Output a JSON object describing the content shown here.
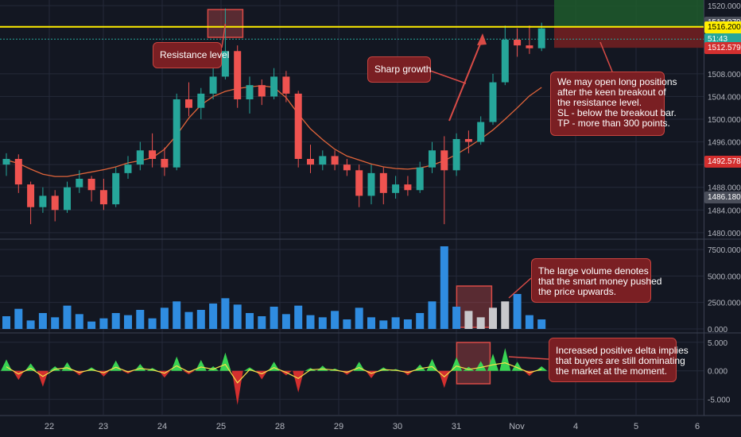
{
  "colors": {
    "background": "#131722",
    "grid": "#242a3a",
    "up": "#26a69a",
    "down": "#ef5350",
    "ma": "#e0643a",
    "resistance": "#ffee00",
    "volume": "#2f8ce0",
    "delta_up": "#39d353",
    "delta_down": "#d32f2f",
    "callout_bg": "#7a1f23",
    "callout_border": "#c8443f"
  },
  "chart_data": [
    {
      "type": "candlestick",
      "panel": "price",
      "x_ticks": [
        "22",
        "23",
        "24",
        "25",
        "28",
        "29",
        "30",
        "31",
        "Nov",
        "4",
        "5",
        "6"
      ],
      "y_ticks": [
        "1480.000",
        "1484.000",
        "1488.000",
        "1492.000",
        "1496.000",
        "1500.000",
        "1504.000",
        "1508.000",
        "1520.000"
      ],
      "ylim": [
        1479,
        1521
      ],
      "grid": true,
      "resistance_level": 1516.2,
      "price_tags": [
        {
          "label": "1517.079",
          "value": 1517.079,
          "bg": "#4a4e5a",
          "fg": "#ffffff"
        },
        {
          "label": "1516.200",
          "value": 1516.2,
          "bg": "#ffee00",
          "fg": "#000000"
        },
        {
          "label": "51:43",
          "value": 1514.1,
          "bg": "#26a69a",
          "fg": "#ffffff"
        },
        {
          "label": "1512.579",
          "value": 1512.579,
          "bg": "#d32f2f",
          "fg": "#ffffff"
        },
        {
          "label": "1492.578",
          "value": 1492.578,
          "bg": "#d32f2f",
          "fg": "#ffffff"
        },
        {
          "label": "1486.180",
          "value": 1486.18,
          "bg": "#4a4e5a",
          "fg": "#ffffff"
        }
      ],
      "moving_average": [
        1492.8,
        1492.2,
        1491.2,
        1490.3,
        1489.9,
        1489.9,
        1490.3,
        1490.7,
        1491.1,
        1491.6,
        1492.3,
        1492.7,
        1493.2,
        1494.7,
        1497.2,
        1500.2,
        1502.5,
        1504.0,
        1504.9,
        1505.4,
        1505.7,
        1505.9,
        1505.6,
        1503.8,
        1500.9,
        1498.3,
        1496.4,
        1494.7,
        1493.5,
        1492.8,
        1492.1,
        1491.6,
        1491.3,
        1491.2,
        1491.4,
        1491.9,
        1492.7,
        1493.8,
        1495.1,
        1496.5,
        1498.1,
        1500.0,
        1502.0,
        1504.1,
        1505.6
      ],
      "candles": [
        {
          "o": 1492.0,
          "h": 1494.0,
          "l": 1490.0,
          "c": 1493.0
        },
        {
          "o": 1493.0,
          "h": 1493.8,
          "l": 1487.0,
          "c": 1488.5
        },
        {
          "o": 1488.5,
          "h": 1489.0,
          "l": 1481.5,
          "c": 1484.5
        },
        {
          "o": 1484.5,
          "h": 1488.0,
          "l": 1483.5,
          "c": 1486.5
        },
        {
          "o": 1486.5,
          "h": 1487.5,
          "l": 1482.0,
          "c": 1484.0
        },
        {
          "o": 1484.0,
          "h": 1489.0,
          "l": 1483.5,
          "c": 1488.0
        },
        {
          "o": 1488.0,
          "h": 1491.0,
          "l": 1487.0,
          "c": 1489.5
        },
        {
          "o": 1489.5,
          "h": 1490.0,
          "l": 1485.5,
          "c": 1487.5
        },
        {
          "o": 1487.5,
          "h": 1489.5,
          "l": 1484.0,
          "c": 1485.0
        },
        {
          "o": 1485.0,
          "h": 1491.5,
          "l": 1484.5,
          "c": 1490.5
        },
        {
          "o": 1490.5,
          "h": 1493.5,
          "l": 1489.5,
          "c": 1492.0
        },
        {
          "o": 1492.0,
          "h": 1496.0,
          "l": 1491.0,
          "c": 1494.5
        },
        {
          "o": 1494.5,
          "h": 1497.5,
          "l": 1491.5,
          "c": 1493.0
        },
        {
          "o": 1493.0,
          "h": 1495.0,
          "l": 1490.0,
          "c": 1491.5
        },
        {
          "o": 1491.5,
          "h": 1504.5,
          "l": 1491.0,
          "c": 1503.5
        },
        {
          "o": 1503.5,
          "h": 1506.5,
          "l": 1500.5,
          "c": 1502.0
        },
        {
          "o": 1502.0,
          "h": 1505.5,
          "l": 1500.0,
          "c": 1504.5
        },
        {
          "o": 1504.5,
          "h": 1509.5,
          "l": 1503.5,
          "c": 1507.5
        },
        {
          "o": 1507.5,
          "h": 1519.5,
          "l": 1507.0,
          "c": 1512.0
        },
        {
          "o": 1512.0,
          "h": 1513.0,
          "l": 1502.0,
          "c": 1503.5
        },
        {
          "o": 1503.5,
          "h": 1507.5,
          "l": 1501.0,
          "c": 1506.0
        },
        {
          "o": 1506.0,
          "h": 1507.0,
          "l": 1502.5,
          "c": 1504.0
        },
        {
          "o": 1504.0,
          "h": 1509.0,
          "l": 1503.5,
          "c": 1507.5
        },
        {
          "o": 1507.5,
          "h": 1508.5,
          "l": 1503.0,
          "c": 1504.5
        },
        {
          "o": 1504.5,
          "h": 1505.0,
          "l": 1491.5,
          "c": 1493.0
        },
        {
          "o": 1493.0,
          "h": 1495.5,
          "l": 1490.5,
          "c": 1492.0
        },
        {
          "o": 1492.0,
          "h": 1494.5,
          "l": 1491.0,
          "c": 1493.5
        },
        {
          "o": 1493.5,
          "h": 1494.5,
          "l": 1491.0,
          "c": 1492.0
        },
        {
          "o": 1492.0,
          "h": 1493.0,
          "l": 1490.0,
          "c": 1491.0
        },
        {
          "o": 1491.0,
          "h": 1492.0,
          "l": 1484.5,
          "c": 1486.5
        },
        {
          "o": 1486.5,
          "h": 1492.0,
          "l": 1485.0,
          "c": 1490.5
        },
        {
          "o": 1490.5,
          "h": 1491.5,
          "l": 1485.0,
          "c": 1487.0
        },
        {
          "o": 1487.0,
          "h": 1490.0,
          "l": 1486.0,
          "c": 1488.5
        },
        {
          "o": 1488.5,
          "h": 1490.0,
          "l": 1486.5,
          "c": 1487.5
        },
        {
          "o": 1487.5,
          "h": 1492.5,
          "l": 1487.0,
          "c": 1491.5
        },
        {
          "o": 1491.5,
          "h": 1496.0,
          "l": 1490.5,
          "c": 1494.5
        },
        {
          "o": 1494.5,
          "h": 1497.0,
          "l": 1481.5,
          "c": 1491.0
        },
        {
          "o": 1491.0,
          "h": 1497.5,
          "l": 1490.0,
          "c": 1496.5
        },
        {
          "o": 1496.5,
          "h": 1498.0,
          "l": 1494.0,
          "c": 1496.0
        },
        {
          "o": 1496.0,
          "h": 1500.5,
          "l": 1495.5,
          "c": 1499.5
        },
        {
          "o": 1499.5,
          "h": 1508.0,
          "l": 1499.0,
          "c": 1506.5
        },
        {
          "o": 1506.5,
          "h": 1516.5,
          "l": 1506.0,
          "c": 1514.0
        },
        {
          "o": 1514.0,
          "h": 1516.0,
          "l": 1511.0,
          "c": 1513.0
        },
        {
          "o": 1513.0,
          "h": 1516.5,
          "l": 1511.5,
          "c": 1512.5
        },
        {
          "o": 1512.5,
          "h": 1517.0,
          "l": 1512.0,
          "c": 1516.0
        }
      ]
    },
    {
      "type": "bar",
      "panel": "volume",
      "y_ticks": [
        "0.000",
        "2500.000",
        "5000.000",
        "7500.000"
      ],
      "ylim": [
        -300,
        8400
      ],
      "values": [
        1200,
        1900,
        800,
        1500,
        1100,
        2200,
        1400,
        700,
        1000,
        1500,
        1300,
        1800,
        1000,
        2000,
        2600,
        1600,
        1800,
        2400,
        2900,
        2300,
        1500,
        1200,
        2100,
        1400,
        2200,
        1300,
        1100,
        1700,
        900,
        2000,
        1100,
        800,
        1100,
        900,
        1500,
        2600,
        7800,
        2100,
        1700,
        1100,
        2000,
        2600,
        3300,
        1300,
        900
      ]
    },
    {
      "type": "area",
      "panel": "delta",
      "y_ticks": [
        "5.000",
        "0.000",
        "-5.000"
      ],
      "ylim": [
        -7.7,
        6.5
      ],
      "values": [
        2.0,
        -1.6,
        1.3,
        -2.8,
        0.8,
        1.5,
        -0.8,
        0.6,
        -1.0,
        1.8,
        -0.5,
        1.2,
        0.5,
        -1.2,
        2.5,
        -0.6,
        1.9,
        0.8,
        3.2,
        -6.0,
        0.6,
        -1.5,
        1.6,
        -0.8,
        -3.8,
        0.5,
        0.9,
        0.4,
        -0.7,
        1.6,
        -1.3,
        0.6,
        0.3,
        -0.8,
        1.1,
        2.1,
        -3.0,
        2.4,
        0.7,
        1.7,
        3.0,
        4.0,
        1.6,
        -0.9,
        0.8
      ]
    }
  ],
  "annotations": {
    "resistance": {
      "lines": [
        "Resistance level"
      ]
    },
    "growth": {
      "lines": [
        "Sharp growth"
      ]
    },
    "long": {
      "lines": [
        "We may open long positions",
        "after the keen breakout of",
        "the resistance level.",
        "SL - below the breakout bar.",
        "TP - more than 300 points."
      ]
    },
    "volume": {
      "lines": [
        "The large volume denotes",
        "that the smart money pushed",
        "the price upwards."
      ]
    },
    "delta": {
      "lines": [
        "Increased positive delta implies",
        "that buyers are still dominating",
        "the market at the moment."
      ]
    }
  }
}
